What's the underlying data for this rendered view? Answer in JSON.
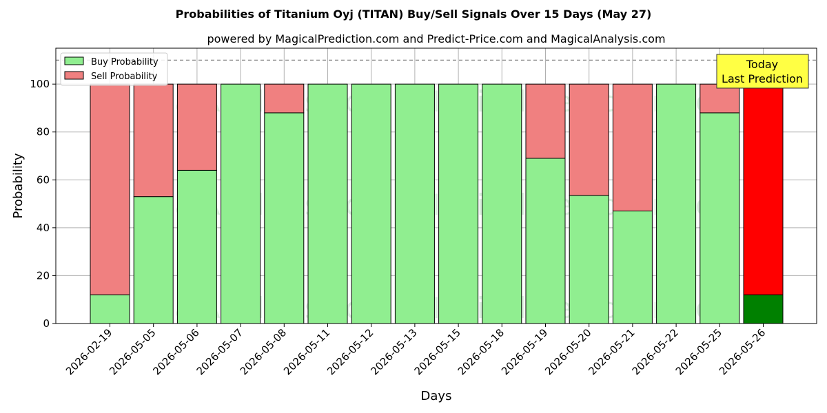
{
  "chart_data": {
    "type": "bar",
    "stacked": true,
    "title": "Probabilities of Titanium Oyj (TITAN) Buy/Sell Signals Over 15 Days (May 27)",
    "subtitle": "powered by MagicalPrediction.com and Predict-Price.com and MagicalAnalysis.com",
    "xlabel": "Days",
    "ylabel": "Probability",
    "ylim": [
      0,
      115
    ],
    "yticks": [
      0,
      20,
      40,
      60,
      80,
      100
    ],
    "grid": true,
    "legend_position": "top-left",
    "threshold_line": 110,
    "categories": [
      "2026-02-19",
      "2026-05-05",
      "2026-05-06",
      "2026-05-07",
      "2026-05-08",
      "2026-05-11",
      "2026-05-12",
      "2026-05-13",
      "2026-05-15",
      "2026-05-18",
      "2026-05-19",
      "2026-05-20",
      "2026-05-21",
      "2026-05-22",
      "2026-05-25",
      "2026-05-26"
    ],
    "series": [
      {
        "name": "Buy Probability",
        "color": "#90ee90",
        "values": [
          12,
          53,
          64,
          100,
          88,
          100,
          100,
          100,
          100,
          100,
          69,
          53.5,
          47,
          100,
          88,
          12
        ]
      },
      {
        "name": "Sell Probability",
        "color": "#f08080",
        "values": [
          88,
          47,
          36,
          0,
          12,
          0,
          0,
          0,
          0,
          0,
          31,
          46.5,
          53,
          0,
          12,
          88
        ]
      }
    ],
    "highlight": {
      "index": 15,
      "buy_color": "#008000",
      "sell_color": "#ff0000"
    },
    "annotation": {
      "lines": [
        "Today",
        "Last Prediction"
      ],
      "background": "#ffff44"
    },
    "watermarks": [
      "MagicalAnalysis.com",
      "MagicalPrediction.com",
      "MagicalAnalysis.com",
      "MagicalPrediction.com",
      "MagicalAnalysis.com",
      "MagicalPrediction.com"
    ]
  }
}
